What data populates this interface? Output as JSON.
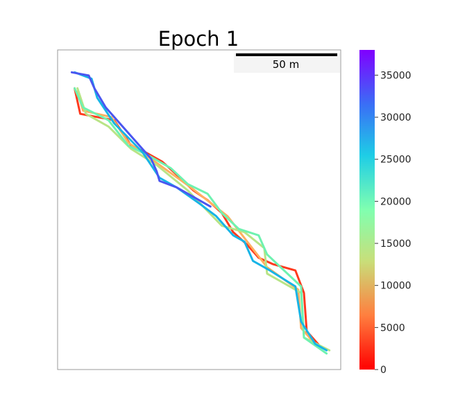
{
  "title": "Epoch 1",
  "scale_bar": {
    "label": "50 m"
  },
  "colorbar": {
    "ticks": [
      "0",
      "5000",
      "10000",
      "15000",
      "20000",
      "25000",
      "30000",
      "35000"
    ],
    "tick_values": [
      0,
      5000,
      10000,
      15000,
      20000,
      25000,
      30000,
      35000
    ],
    "min": 0,
    "max": 38000,
    "colormap": "rainbow"
  },
  "chart_data": {
    "type": "line",
    "title": "Epoch 1",
    "xlabel": "",
    "ylabel": "",
    "axes_ticks": "none",
    "colorbar_range": [
      0,
      38000
    ],
    "colorbar_ticks": [
      0,
      5000,
      10000,
      15000,
      20000,
      25000,
      30000,
      35000
    ],
    "series": [
      {
        "value": 2000,
        "color": "#ff3a1e",
        "points": [
          [
            0.06,
            0.12
          ],
          [
            0.08,
            0.2
          ],
          [
            0.2,
            0.22
          ],
          [
            0.26,
            0.3
          ],
          [
            0.31,
            0.32
          ],
          [
            0.37,
            0.35
          ],
          [
            0.42,
            0.39
          ],
          [
            0.48,
            0.44
          ],
          [
            0.53,
            0.47
          ],
          [
            0.58,
            0.51
          ],
          [
            0.62,
            0.57
          ],
          [
            0.67,
            0.61
          ],
          [
            0.71,
            0.65
          ],
          [
            0.76,
            0.67
          ],
          [
            0.84,
            0.69
          ],
          [
            0.87,
            0.76
          ],
          [
            0.88,
            0.88
          ],
          [
            0.93,
            0.93
          ]
        ]
      },
      {
        "value": 9000,
        "color": "#ffb060",
        "points": [
          [
            0.07,
            0.13
          ],
          [
            0.09,
            0.19
          ],
          [
            0.19,
            0.21
          ],
          [
            0.25,
            0.29
          ],
          [
            0.36,
            0.36
          ],
          [
            0.47,
            0.43
          ],
          [
            0.6,
            0.52
          ],
          [
            0.74,
            0.68
          ],
          [
            0.85,
            0.75
          ],
          [
            0.86,
            0.87
          ],
          [
            0.92,
            0.93
          ]
        ]
      },
      {
        "value": 16000,
        "color": "#b8e486",
        "points": [
          [
            0.07,
            0.12
          ],
          [
            0.1,
            0.2
          ],
          [
            0.18,
            0.24
          ],
          [
            0.26,
            0.31
          ],
          [
            0.35,
            0.36
          ],
          [
            0.46,
            0.44
          ],
          [
            0.58,
            0.55
          ],
          [
            0.66,
            0.57
          ],
          [
            0.73,
            0.62
          ],
          [
            0.74,
            0.7
          ],
          [
            0.86,
            0.76
          ],
          [
            0.87,
            0.9
          ],
          [
            0.96,
            0.94
          ]
        ]
      },
      {
        "value": 21000,
        "color": "#6ef2b0",
        "points": [
          [
            0.06,
            0.12
          ],
          [
            0.09,
            0.18
          ],
          [
            0.18,
            0.22
          ],
          [
            0.25,
            0.3
          ],
          [
            0.32,
            0.33
          ],
          [
            0.4,
            0.37
          ],
          [
            0.46,
            0.42
          ],
          [
            0.53,
            0.45
          ],
          [
            0.58,
            0.51
          ],
          [
            0.64,
            0.56
          ],
          [
            0.71,
            0.58
          ],
          [
            0.74,
            0.64
          ],
          [
            0.8,
            0.69
          ],
          [
            0.86,
            0.74
          ],
          [
            0.87,
            0.9
          ],
          [
            0.95,
            0.95
          ]
        ]
      },
      {
        "value": 28000,
        "color": "#17b4e6",
        "points": [
          [
            0.06,
            0.07
          ],
          [
            0.12,
            0.09
          ],
          [
            0.14,
            0.15
          ],
          [
            0.2,
            0.23
          ],
          [
            0.3,
            0.32
          ],
          [
            0.36,
            0.4
          ],
          [
            0.42,
            0.43
          ],
          [
            0.5,
            0.48
          ],
          [
            0.56,
            0.52
          ],
          [
            0.62,
            0.58
          ],
          [
            0.66,
            0.6
          ],
          [
            0.69,
            0.66
          ],
          [
            0.75,
            0.69
          ],
          [
            0.84,
            0.74
          ],
          [
            0.86,
            0.85
          ],
          [
            0.91,
            0.92
          ],
          [
            0.95,
            0.94
          ]
        ]
      },
      {
        "value": 34000,
        "color": "#4a56f0",
        "points": [
          [
            0.05,
            0.07
          ],
          [
            0.11,
            0.08
          ],
          [
            0.13,
            0.12
          ],
          [
            0.17,
            0.18
          ],
          [
            0.23,
            0.24
          ],
          [
            0.33,
            0.34
          ],
          [
            0.35,
            0.38
          ],
          [
            0.36,
            0.41
          ],
          [
            0.42,
            0.43
          ],
          [
            0.5,
            0.47
          ],
          [
            0.54,
            0.49
          ]
        ]
      }
    ]
  }
}
